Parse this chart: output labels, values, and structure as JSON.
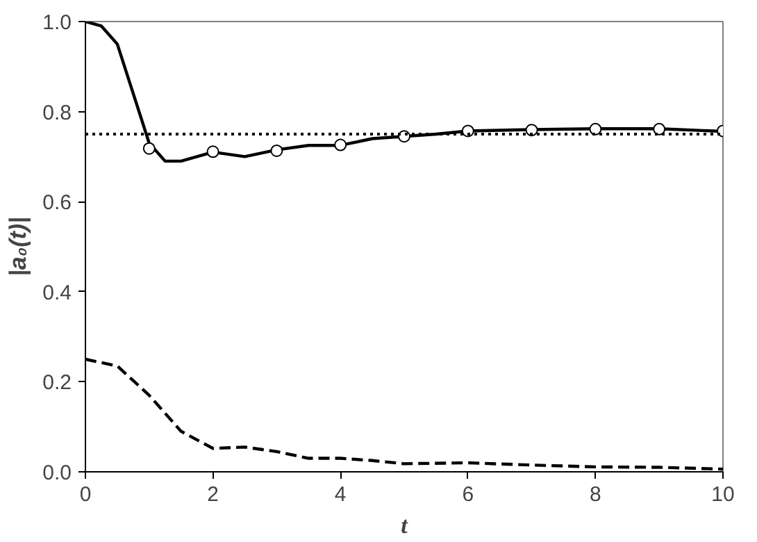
{
  "chart_data": {
    "type": "line",
    "xlabel": "t",
    "ylabel": "|a₀(t)|",
    "xlim": [
      0,
      10
    ],
    "ylim": [
      0,
      1
    ],
    "xticks": [
      0,
      2,
      4,
      6,
      8,
      10
    ],
    "yticks": [
      {
        "value": 0,
        "label": "0.0"
      },
      0.2,
      0.4,
      0.6,
      0.8,
      {
        "value": 1,
        "label": "1.0"
      }
    ],
    "grid": false,
    "series": [
      {
        "color": "#000000",
        "line_style": "solid",
        "x": [
          0,
          0.25,
          0.5,
          0.75,
          1,
          1.25,
          1.5,
          2,
          2.5,
          3,
          3.5,
          4,
          4.5,
          5,
          5.5,
          6,
          7,
          8,
          9,
          10
        ],
        "values": [
          1.0,
          0.99,
          0.95,
          0.84,
          0.73,
          0.69,
          0.69,
          0.71,
          0.7,
          0.715,
          0.725,
          0.725,
          0.74,
          0.745,
          0.75,
          0.757,
          0.76,
          0.762,
          0.762,
          0.756
        ]
      },
      {
        "type": "scatter",
        "color": "#000000",
        "marker": "circle",
        "x": [
          1,
          2,
          3,
          4,
          5,
          6,
          7,
          8,
          9,
          10
        ],
        "values": [
          0.718,
          0.711,
          0.713,
          0.726,
          0.745,
          0.757,
          0.759,
          0.761,
          0.761,
          0.757
        ]
      },
      {
        "color": "#000000",
        "line_style": "dashed",
        "x": [
          0,
          0.5,
          1,
          1.5,
          2,
          2.5,
          3,
          3.5,
          4,
          4.5,
          5,
          6,
          7,
          8,
          9,
          10
        ],
        "values": [
          0.25,
          0.235,
          0.17,
          0.09,
          0.052,
          0.055,
          0.045,
          0.03,
          0.03,
          0.025,
          0.018,
          0.02,
          0.015,
          0.011,
          0.01,
          0.006
        ]
      }
    ],
    "ref_lines": [
      {
        "axis": "y",
        "value": 0.75,
        "color": "#000000",
        "line_style": "dotted"
      }
    ]
  }
}
